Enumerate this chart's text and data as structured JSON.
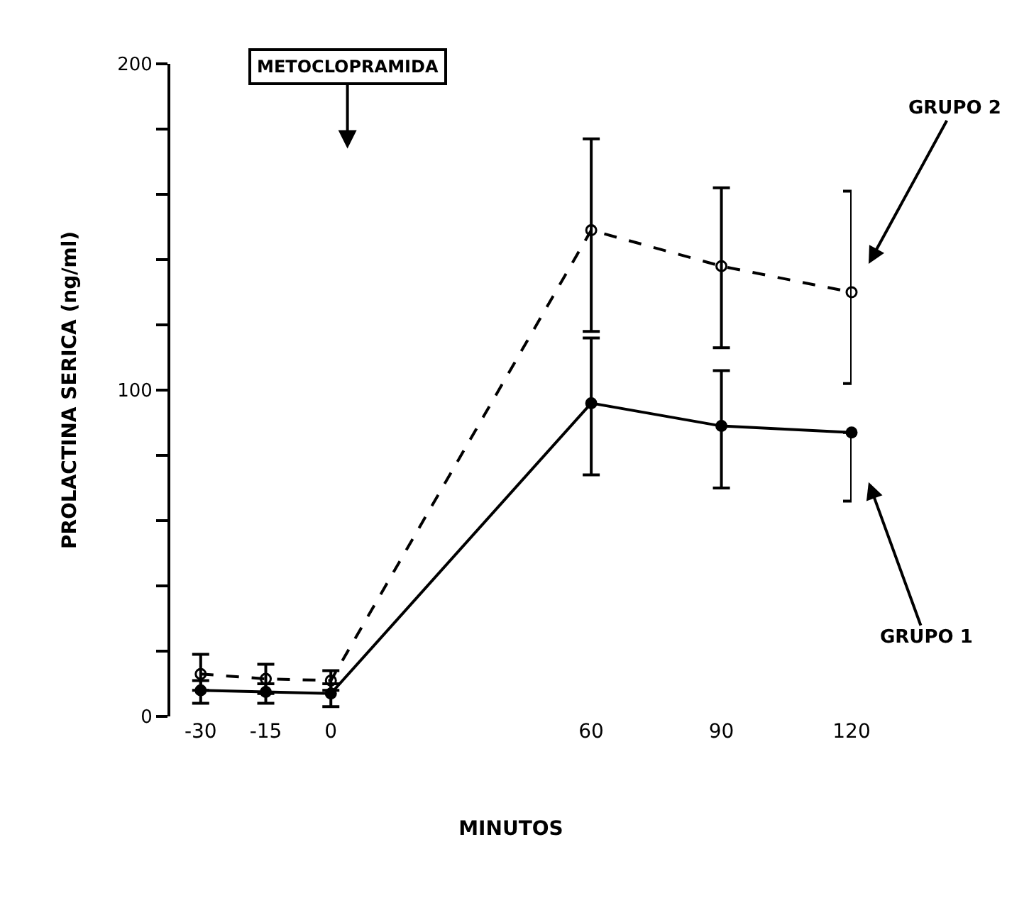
{
  "chart_data": {
    "type": "line",
    "xlabel": "MINUTOS",
    "ylabel": "PROLACTINA SERICA (ng/ml)",
    "x": [
      -30,
      -15,
      0,
      60,
      90,
      120
    ],
    "xlim": [
      -37,
      120
    ],
    "xticks": [
      -30,
      -15,
      0,
      60,
      90,
      120
    ],
    "ylim": [
      0,
      200
    ],
    "yticks": [
      0,
      {
        "value": 20,
        "label": null
      },
      {
        "value": 40,
        "label": null
      },
      {
        "value": 60,
        "label": null
      },
      {
        "value": 80,
        "label": null
      },
      100,
      {
        "value": 120,
        "label": null
      },
      {
        "value": 140,
        "label": null
      },
      {
        "value": 160,
        "label": null
      },
      {
        "value": 180,
        "label": null
      },
      200
    ],
    "tick_labels": "xy",
    "legend": false,
    "marker": "circle",
    "series": [
      {
        "name": "GRUPO 2",
        "color": "#000000",
        "line_style": "dashed",
        "values": [
          13,
          11.5,
          11,
          149,
          138,
          130
        ],
        "errors": [
          [
            8,
            19
          ],
          [
            7,
            16
          ],
          [
            8,
            14
          ],
          [
            118,
            177
          ],
          [
            113,
            162
          ],
          [
            102,
            161
          ]
        ]
      },
      {
        "name": "GRUPO 1",
        "color": "#000000",
        "line_style": "solid",
        "values": [
          8,
          7.5,
          7,
          96,
          89,
          87
        ],
        "errors": [
          [
            4,
            11
          ],
          [
            4,
            10
          ],
          [
            3,
            10
          ],
          [
            74,
            116
          ],
          [
            70,
            106
          ],
          [
            66,
            87
          ]
        ]
      }
    ],
    "annotations": [
      "METOCLOPRAMIDA"
    ]
  }
}
